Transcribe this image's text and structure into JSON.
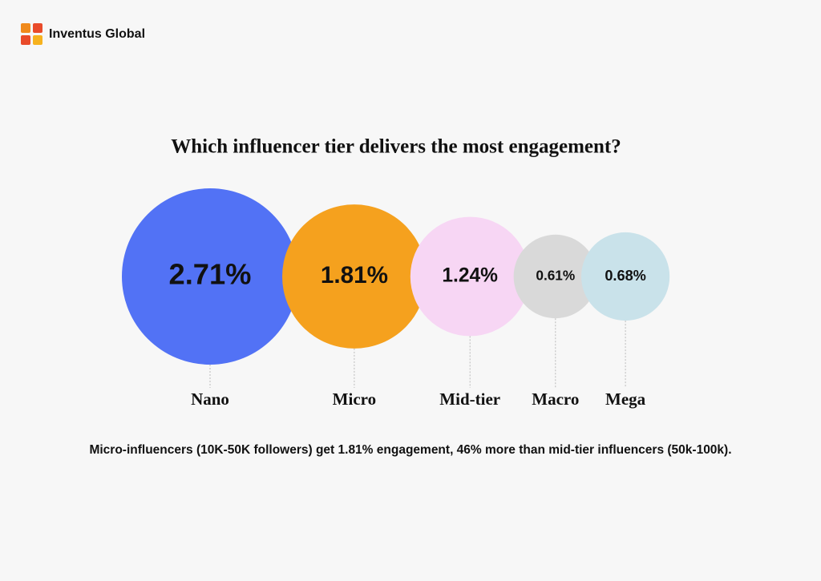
{
  "brand": "Inventus Global",
  "chart_data": {
    "type": "bubble",
    "title": "Which influencer tier delivers the most engagement?",
    "categories": [
      "Nano",
      "Micro",
      "Mid-tier",
      "Macro",
      "Mega"
    ],
    "values": [
      2.71,
      1.81,
      1.24,
      0.61,
      0.68
    ],
    "value_labels": [
      "2.71%",
      "1.81%",
      "1.24%",
      "0.61%",
      "0.68%"
    ],
    "colors": [
      "#5272f5",
      "#f5a11e",
      "#f7d6f4",
      "#d9d9d9",
      "#c9e2ea"
    ],
    "caption": "Micro-influencers (10K-50K followers) get 1.81% engagement, 46% more than mid-tier influencers (50k-100k)."
  }
}
